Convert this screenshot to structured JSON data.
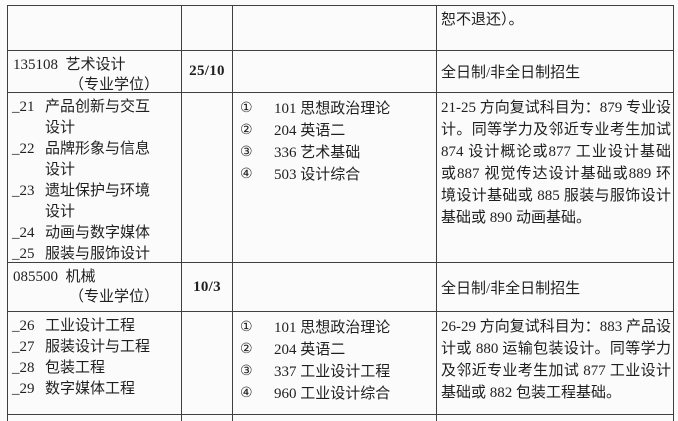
{
  "colors": {
    "background": "#fbfbfb",
    "border": "#3f3f3f",
    "text": "#1f1f1f"
  },
  "continuation_note": "恕不退还）。",
  "sections": [
    {
      "program_code_name": "135108  艺术设计",
      "program_degree": "（专业学位）",
      "quota": "25/10",
      "enrollment": "全日制/非全日制招生",
      "directions": [
        {
          "num": "_21",
          "name": "产品创新与交互设计"
        },
        {
          "num": "_22",
          "name": "品牌形象与信息设计"
        },
        {
          "num": "_23",
          "name": "遗址保护与环境设计"
        },
        {
          "num": "_24",
          "name": "动画与数字媒体"
        },
        {
          "num": "_25",
          "name": "服装与服饰设计"
        }
      ],
      "subjects": [
        {
          "marker": "①",
          "text": "101 思想政治理论"
        },
        {
          "marker": "②",
          "text": "204 英语二"
        },
        {
          "marker": "③",
          "text": "336 艺术基础"
        },
        {
          "marker": "④",
          "text": "503 设计综合"
        }
      ],
      "note": "21-25 方向复试科目为：879 专业设计。同等学力及邻近专业考生加试874 设计概论或877 工业设计基础或887 视觉传达设计基础或889 环境设计基础或 885 服装与服饰设计基础或 890 动画基础。"
    },
    {
      "program_code_name": "085500  机械",
      "program_degree": "（专业学位）",
      "quota": "10/3",
      "enrollment": "全日制/非全日制招生",
      "directions": [
        {
          "num": "_26",
          "name": "工业设计工程"
        },
        {
          "num": "_27",
          "name": "服装设计与工程"
        },
        {
          "num": "_28",
          "name": "包装工程"
        },
        {
          "num": "_29",
          "name": "数字媒体工程"
        }
      ],
      "subjects": [
        {
          "marker": "①",
          "text": "101 思想政治理论"
        },
        {
          "marker": "②",
          "text": "204 英语二"
        },
        {
          "marker": "③",
          "text": "337 工业设计工程"
        },
        {
          "marker": "④",
          "text": "960 工业设计综合"
        }
      ],
      "note": "26-29 方向复试科目为：883 产品设计或 880 运输包装设计。同等学力及邻近专业考生加试 877 工业设计基础或 882 包装工程基础。"
    }
  ]
}
